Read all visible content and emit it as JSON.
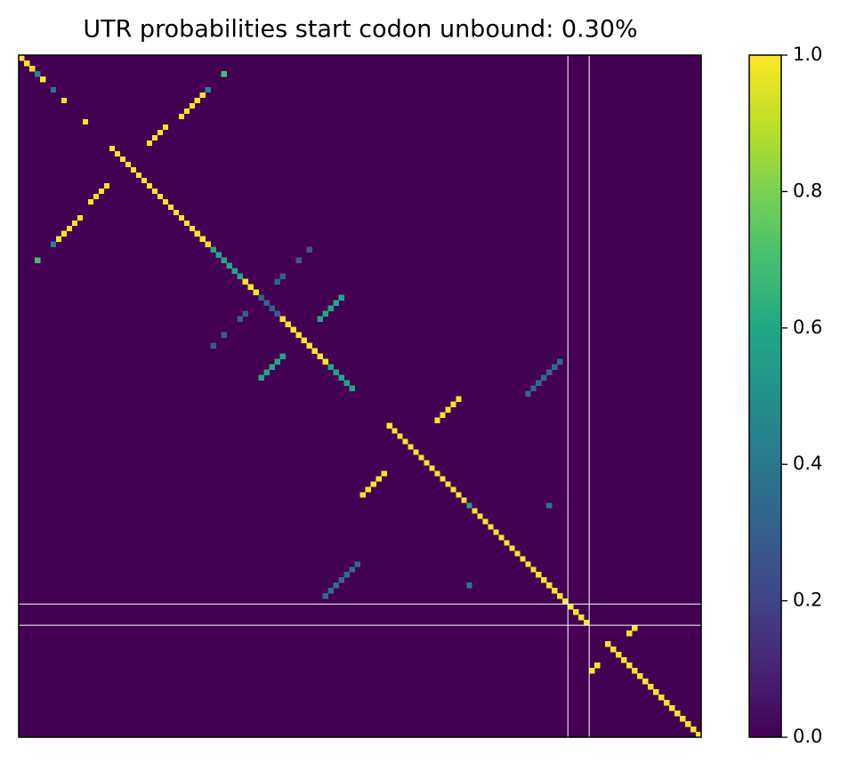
{
  "chart_data": {
    "type": "heatmap",
    "title": "UTR probabilities start codon unbound: 0.30%",
    "colormap": "viridis",
    "clim": [
      0,
      1
    ],
    "xlim": [
      0,
      128
    ],
    "ylim": [
      0,
      128
    ],
    "origin": "upper",
    "markers": [
      103,
      107
    ],
    "diagonal": [
      1,
      1,
      1,
      0.45,
      1,
      0,
      0.4,
      0,
      1,
      0,
      0,
      0,
      1,
      0,
      0,
      0,
      0,
      1,
      1,
      1,
      1,
      1,
      1,
      1,
      1,
      1,
      1,
      1,
      1,
      1,
      1,
      1,
      1,
      1,
      1,
      1,
      0.6,
      0.6,
      0.6,
      0.6,
      0.6,
      0.6,
      1,
      1,
      1,
      0.3,
      0.3,
      0.3,
      0.3,
      1,
      1,
      1,
      1,
      1,
      1,
      1,
      1,
      1,
      0.6,
      0.6,
      0.6,
      0.6,
      0.6,
      0,
      0,
      0,
      0,
      0,
      0,
      1,
      1,
      1,
      1,
      1,
      1,
      1,
      1,
      1,
      1,
      1,
      1,
      1,
      1,
      1,
      0.6,
      1,
      1,
      1,
      1,
      1,
      1,
      1,
      1,
      1,
      1,
      1,
      1,
      1,
      1,
      1,
      1,
      1,
      1,
      1,
      1,
      1,
      1,
      0,
      0,
      0,
      1,
      1,
      1,
      1,
      1,
      1,
      1,
      1,
      1,
      1,
      1,
      1,
      1,
      1,
      1,
      1,
      1,
      1
    ],
    "pairs": [
      {
        "x": 34,
        "y": 7,
        "value": 1
      },
      {
        "x": 33,
        "y": 8,
        "value": 1
      },
      {
        "x": 32,
        "y": 9,
        "value": 1
      },
      {
        "x": 31,
        "y": 10,
        "value": 1
      },
      {
        "x": 30,
        "y": 11,
        "value": 1
      },
      {
        "x": 35,
        "y": 6,
        "value": 0.45
      },
      {
        "x": 38,
        "y": 3,
        "value": 0.7
      },
      {
        "x": 24,
        "y": 16,
        "value": 1
      },
      {
        "x": 25,
        "y": 15,
        "value": 1
      },
      {
        "x": 26,
        "y": 14,
        "value": 1
      },
      {
        "x": 27,
        "y": 13,
        "value": 1
      },
      {
        "x": 54,
        "y": 36,
        "value": 0.3
      },
      {
        "x": 52,
        "y": 38,
        "value": 0.3
      },
      {
        "x": 49,
        "y": 41,
        "value": 0.3
      },
      {
        "x": 48,
        "y": 42,
        "value": 0.3
      },
      {
        "x": 56,
        "y": 49,
        "value": 0.6
      },
      {
        "x": 57,
        "y": 48,
        "value": 0.6
      },
      {
        "x": 58,
        "y": 47,
        "value": 0.6
      },
      {
        "x": 59,
        "y": 46,
        "value": 0.6
      },
      {
        "x": 60,
        "y": 45,
        "value": 0.6
      },
      {
        "x": 95,
        "y": 63,
        "value": 0.35
      },
      {
        "x": 96,
        "y": 62,
        "value": 0.35
      },
      {
        "x": 97,
        "y": 61,
        "value": 0.35
      },
      {
        "x": 98,
        "y": 60,
        "value": 0.35
      },
      {
        "x": 99,
        "y": 59,
        "value": 0.35
      },
      {
        "x": 100,
        "y": 58,
        "value": 0.35
      },
      {
        "x": 101,
        "y": 57,
        "value": 0.35
      },
      {
        "x": 78,
        "y": 68,
        "value": 1
      },
      {
        "x": 79,
        "y": 67,
        "value": 1
      },
      {
        "x": 80,
        "y": 66,
        "value": 1
      },
      {
        "x": 81,
        "y": 65,
        "value": 1
      },
      {
        "x": 82,
        "y": 64,
        "value": 1
      },
      {
        "x": 99,
        "y": 84,
        "value": 0.4
      },
      {
        "x": 114,
        "y": 108,
        "value": 1
      },
      {
        "x": 115,
        "y": 107,
        "value": 1
      }
    ],
    "cticks": [
      {
        "value": 0,
        "label": "0.0"
      },
      {
        "value": 0.2,
        "label": "0.2"
      },
      {
        "value": 0.4,
        "label": "0.4"
      },
      {
        "value": 0.6,
        "label": "0.6"
      },
      {
        "value": 0.8,
        "label": "0.8"
      },
      {
        "value": 1,
        "label": "1.0"
      }
    ]
  }
}
